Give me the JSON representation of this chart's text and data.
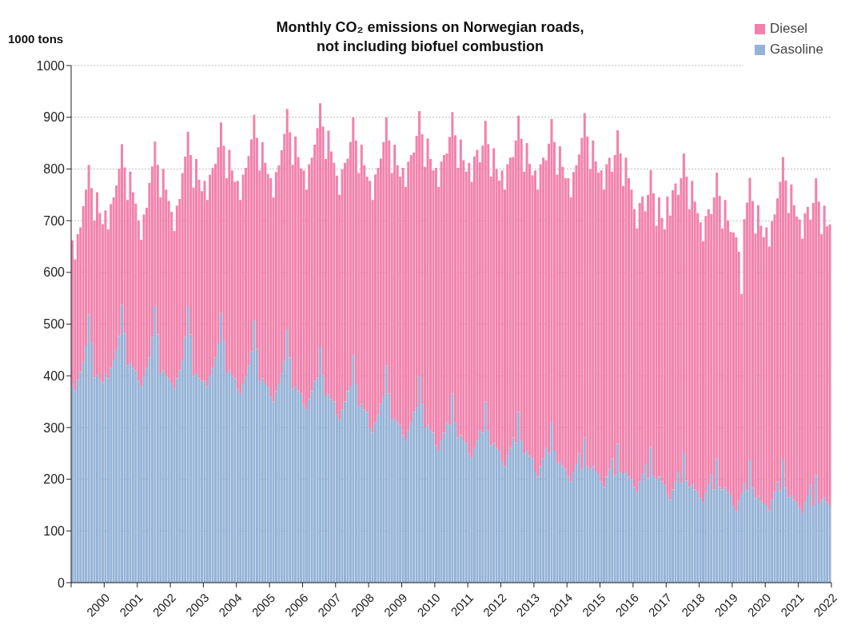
{
  "chart_data": {
    "type": "bar",
    "title": "Monthly CO₂ emissions on Norwegian roads,\nnot including biofuel combustion",
    "ylabel": "1000 tons",
    "stacked": true,
    "grid": "y",
    "legend": "top right",
    "x": [
      "1999-01",
      "1999-02",
      "1999-03",
      "1999-04",
      "1999-05",
      "1999-06",
      "1999-07",
      "1999-08",
      "1999-09",
      "1999-10",
      "1999-11",
      "1999-12",
      "2000-01",
      "2000-02",
      "2000-03",
      "2000-04",
      "2000-05",
      "2000-06",
      "2000-07",
      "2000-08",
      "2000-09",
      "2000-10",
      "2000-11",
      "2000-12",
      "2001-01",
      "2001-02",
      "2001-03",
      "2001-04",
      "2001-05",
      "2001-06",
      "2001-07",
      "2001-08",
      "2001-09",
      "2001-10",
      "2001-11",
      "2001-12",
      "2002-01",
      "2002-02",
      "2002-03",
      "2002-04",
      "2002-05",
      "2002-06",
      "2002-07",
      "2002-08",
      "2002-09",
      "2002-10",
      "2002-11",
      "2002-12",
      "2003-01",
      "2003-02",
      "2003-03",
      "2003-04",
      "2003-05",
      "2003-06",
      "2003-07",
      "2003-08",
      "2003-09",
      "2003-10",
      "2003-11",
      "2003-12",
      "2004-01",
      "2004-02",
      "2004-03",
      "2004-04",
      "2004-05",
      "2004-06",
      "2004-07",
      "2004-08",
      "2004-09",
      "2004-10",
      "2004-11",
      "2004-12",
      "2005-01",
      "2005-02",
      "2005-03",
      "2005-04",
      "2005-05",
      "2005-06",
      "2005-07",
      "2005-08",
      "2005-09",
      "2005-10",
      "2005-11",
      "2005-12",
      "2006-01",
      "2006-02",
      "2006-03",
      "2006-04",
      "2006-05",
      "2006-06",
      "2006-07",
      "2006-08",
      "2006-09",
      "2006-10",
      "2006-11",
      "2006-12",
      "2007-01",
      "2007-02",
      "2007-03",
      "2007-04",
      "2007-05",
      "2007-06",
      "2007-07",
      "2007-08",
      "2007-09",
      "2007-10",
      "2007-11",
      "2007-12",
      "2008-01",
      "2008-02",
      "2008-03",
      "2008-04",
      "2008-05",
      "2008-06",
      "2008-07",
      "2008-08",
      "2008-09",
      "2008-10",
      "2008-11",
      "2008-12",
      "2009-01",
      "2009-02",
      "2009-03",
      "2009-04",
      "2009-05",
      "2009-06",
      "2009-07",
      "2009-08",
      "2009-09",
      "2009-10",
      "2009-11",
      "2009-12",
      "2010-01",
      "2010-02",
      "2010-03",
      "2010-04",
      "2010-05",
      "2010-06",
      "2010-07",
      "2010-08",
      "2010-09",
      "2010-10",
      "2010-11",
      "2010-12",
      "2011-01",
      "2011-02",
      "2011-03",
      "2011-04",
      "2011-05",
      "2011-06",
      "2011-07",
      "2011-08",
      "2011-09",
      "2011-10",
      "2011-11",
      "2011-12",
      "2012-01",
      "2012-02",
      "2012-03",
      "2012-04",
      "2012-05",
      "2012-06",
      "2012-07",
      "2012-08",
      "2012-09",
      "2012-10",
      "2012-11",
      "2012-12",
      "2013-01",
      "2013-02",
      "2013-03",
      "2013-04",
      "2013-05",
      "2013-06",
      "2013-07",
      "2013-08",
      "2013-09",
      "2013-10",
      "2013-11",
      "2013-12",
      "2014-01",
      "2014-02",
      "2014-03",
      "2014-04",
      "2014-05",
      "2014-06",
      "2014-07",
      "2014-08",
      "2014-09",
      "2014-10",
      "2014-11",
      "2014-12",
      "2015-01",
      "2015-02",
      "2015-03",
      "2015-04",
      "2015-05",
      "2015-06",
      "2015-07",
      "2015-08",
      "2015-09",
      "2015-10",
      "2015-11",
      "2015-12",
      "2016-01",
      "2016-02",
      "2016-03",
      "2016-04",
      "2016-05",
      "2016-06",
      "2016-07",
      "2016-08",
      "2016-09",
      "2016-10",
      "2016-11",
      "2016-12",
      "2017-01",
      "2017-02",
      "2017-03",
      "2017-04",
      "2017-05",
      "2017-06",
      "2017-07",
      "2017-08",
      "2017-09",
      "2017-10",
      "2017-11",
      "2017-12",
      "2018-01",
      "2018-02",
      "2018-03",
      "2018-04",
      "2018-05",
      "2018-06",
      "2018-07",
      "2018-08",
      "2018-09",
      "2018-10",
      "2018-11",
      "2018-12",
      "2019-01",
      "2019-02",
      "2019-03",
      "2019-04",
      "2019-05",
      "2019-06",
      "2019-07",
      "2019-08",
      "2019-09",
      "2019-10",
      "2019-11",
      "2019-12",
      "2020-01",
      "2020-02",
      "2020-03",
      "2020-04",
      "2020-05",
      "2020-06",
      "2020-07",
      "2020-08",
      "2020-09",
      "2020-10",
      "2020-11",
      "2020-12",
      "2021-01",
      "2021-02",
      "2021-03",
      "2021-04",
      "2021-05",
      "2021-06",
      "2021-07",
      "2021-08",
      "2021-09",
      "2021-10",
      "2021-11",
      "2021-12"
    ],
    "xlim": [
      "1999-01",
      "2022-01"
    ],
    "xticks": [
      {
        "value": "1999",
        "label": null
      },
      "2000",
      "2001",
      "2002",
      "2003",
      "2004",
      "2005",
      "2006",
      "2007",
      "2008",
      "2009",
      "2010",
      "2011",
      "2012",
      "2013",
      "2014",
      "2015",
      "2016",
      "2017",
      "2018",
      "2019",
      "2020",
      "2021",
      "2022"
    ],
    "ylim": [
      0,
      1000
    ],
    "yticks": [
      0,
      100,
      200,
      300,
      400,
      500,
      600,
      700,
      800,
      900,
      1000
    ],
    "series": [
      {
        "name": "Gasoline",
        "color": "#95b3d7",
        "values": [
          382,
          372,
          392,
          407,
          427,
          459,
          519,
          464,
          397,
          402,
          392,
          387,
          405,
          395,
          415,
          430,
          450,
          477,
          537,
          482,
          420,
          425,
          415,
          410,
          390,
          380,
          400,
          415,
          435,
          475,
          535,
          480,
          405,
          410,
          400,
          395,
          385,
          375,
          395,
          410,
          430,
          475,
          535,
          480,
          400,
          405,
          395,
          390,
          390,
          380,
          400,
          415,
          435,
          462,
          522,
          467,
          405,
          410,
          400,
          395,
          375,
          365,
          385,
          400,
          420,
          447,
          507,
          452,
          390,
          395,
          385,
          380,
          360,
          350,
          370,
          385,
          405,
          430,
          490,
          435,
          375,
          380,
          370,
          365,
          345,
          335,
          355,
          370,
          390,
          396,
          456,
          401,
          360,
          365,
          355,
          350,
          325,
          315,
          335,
          350,
          370,
          380,
          440,
          385,
          340,
          345,
          335,
          330,
          300,
          290,
          310,
          325,
          345,
          360,
          420,
          365,
          315,
          320,
          310,
          305,
          285,
          275,
          295,
          310,
          330,
          340,
          400,
          345,
          300,
          305,
          295,
          290,
          265,
          255,
          275,
          290,
          310,
          305,
          365,
          310,
          280,
          285,
          275,
          270,
          250,
          240,
          260,
          275,
          295,
          290,
          350,
          295,
          265,
          270,
          260,
          255,
          235,
          225,
          245,
          260,
          280,
          270,
          330,
          275,
          250,
          255,
          245,
          240,
          215,
          205,
          225,
          240,
          260,
          250,
          310,
          255,
          230,
          235,
          225,
          220,
          205,
          195,
          215,
          230,
          250,
          220,
          280,
          225,
          220,
          225,
          215,
          210,
          195,
          185,
          205,
          220,
          240,
          208,
          268,
          213,
          210,
          215,
          205,
          200,
          185,
          175,
          195,
          210,
          230,
          202,
          262,
          207,
          200,
          205,
          195,
          190,
          170,
          160,
          180,
          195,
          215,
          192,
          252,
          197,
          185,
          190,
          180,
          175,
          165,
          155,
          175,
          190,
          210,
          180,
          240,
          185,
          180,
          185,
          175,
          170,
          148,
          138,
          158,
          173,
          193,
          178,
          238,
          183,
          163,
          168,
          158,
          153,
          150,
          140,
          160,
          175,
          195,
          178,
          238,
          183,
          165,
          170,
          160,
          155,
          145,
          135,
          155,
          170,
          190,
          148,
          208,
          153,
          160,
          165,
          155,
          150
        ]
      },
      {
        "name": "Diesel",
        "color": "#f282ac",
        "values": [
          280,
          253,
          282,
          280,
          301,
          301,
          289,
          299,
          303,
          353,
          323,
          306,
          315,
          288,
          317,
          315,
          318,
          323,
          311,
          321,
          320,
          370,
          340,
          323,
          310,
          283,
          312,
          310,
          338,
          330,
          318,
          328,
          340,
          390,
          360,
          343,
          332,
          305,
          334,
          332,
          362,
          349,
          337,
          347,
          364,
          414,
          384,
          367,
          387,
          360,
          389,
          387,
          375,
          380,
          368,
          378,
          377,
          427,
          397,
          380,
          402,
          375,
          404,
          402,
          405,
          410,
          398,
          408,
          407,
          457,
          427,
          410,
          422,
          395,
          424,
          422,
          431,
          438,
          426,
          436,
          433,
          483,
          453,
          436,
          452,
          425,
          454,
          452,
          457,
          483,
          471,
          481,
          459,
          509,
          479,
          462,
          462,
          435,
          464,
          462,
          450,
          472,
          460,
          470,
          452,
          502,
          472,
          455,
          477,
          450,
          479,
          477,
          475,
          492,
          480,
          490,
          477,
          527,
          497,
          480,
          517,
          490,
          519,
          517,
          502,
          524,
          512,
          522,
          504,
          554,
          524,
          507,
          537,
          510,
          539,
          537,
          520,
          557,
          545,
          555,
          522,
          572,
          542,
          525,
          562,
          535,
          564,
          562,
          518,
          555,
          543,
          553,
          520,
          570,
          540,
          523,
          562,
          535,
          564,
          562,
          543,
          585,
          573,
          583,
          545,
          595,
          565,
          548,
          582,
          555,
          584,
          582,
          557,
          599,
          587,
          597,
          559,
          609,
          579,
          562,
          577,
          550,
          579,
          577,
          578,
          640,
          628,
          638,
          580,
          630,
          600,
          583,
          602,
          575,
          604,
          602,
          555,
          619,
          607,
          617,
          557,
          607,
          577,
          560,
          537,
          510,
          539,
          537,
          488,
          548,
          536,
          546,
          490,
          540,
          510,
          493,
          577,
          550,
          579,
          577,
          535,
          590,
          578,
          588,
          537,
          587,
          557,
          540,
          532,
          505,
          534,
          532,
          503,
          565,
          553,
          563,
          505,
          555,
          525,
          508,
          529,
          530,
          482,
          385,
          510,
          557,
          545,
          555,
          512,
          562,
          532,
          515,
          537,
          510,
          539,
          537,
          548,
          597,
          585,
          595,
          550,
          600,
          570,
          553,
          557,
          530,
          559,
          557,
          512,
          586,
          574,
          584,
          514,
          564,
          534,
          543
        ]
      }
    ]
  }
}
